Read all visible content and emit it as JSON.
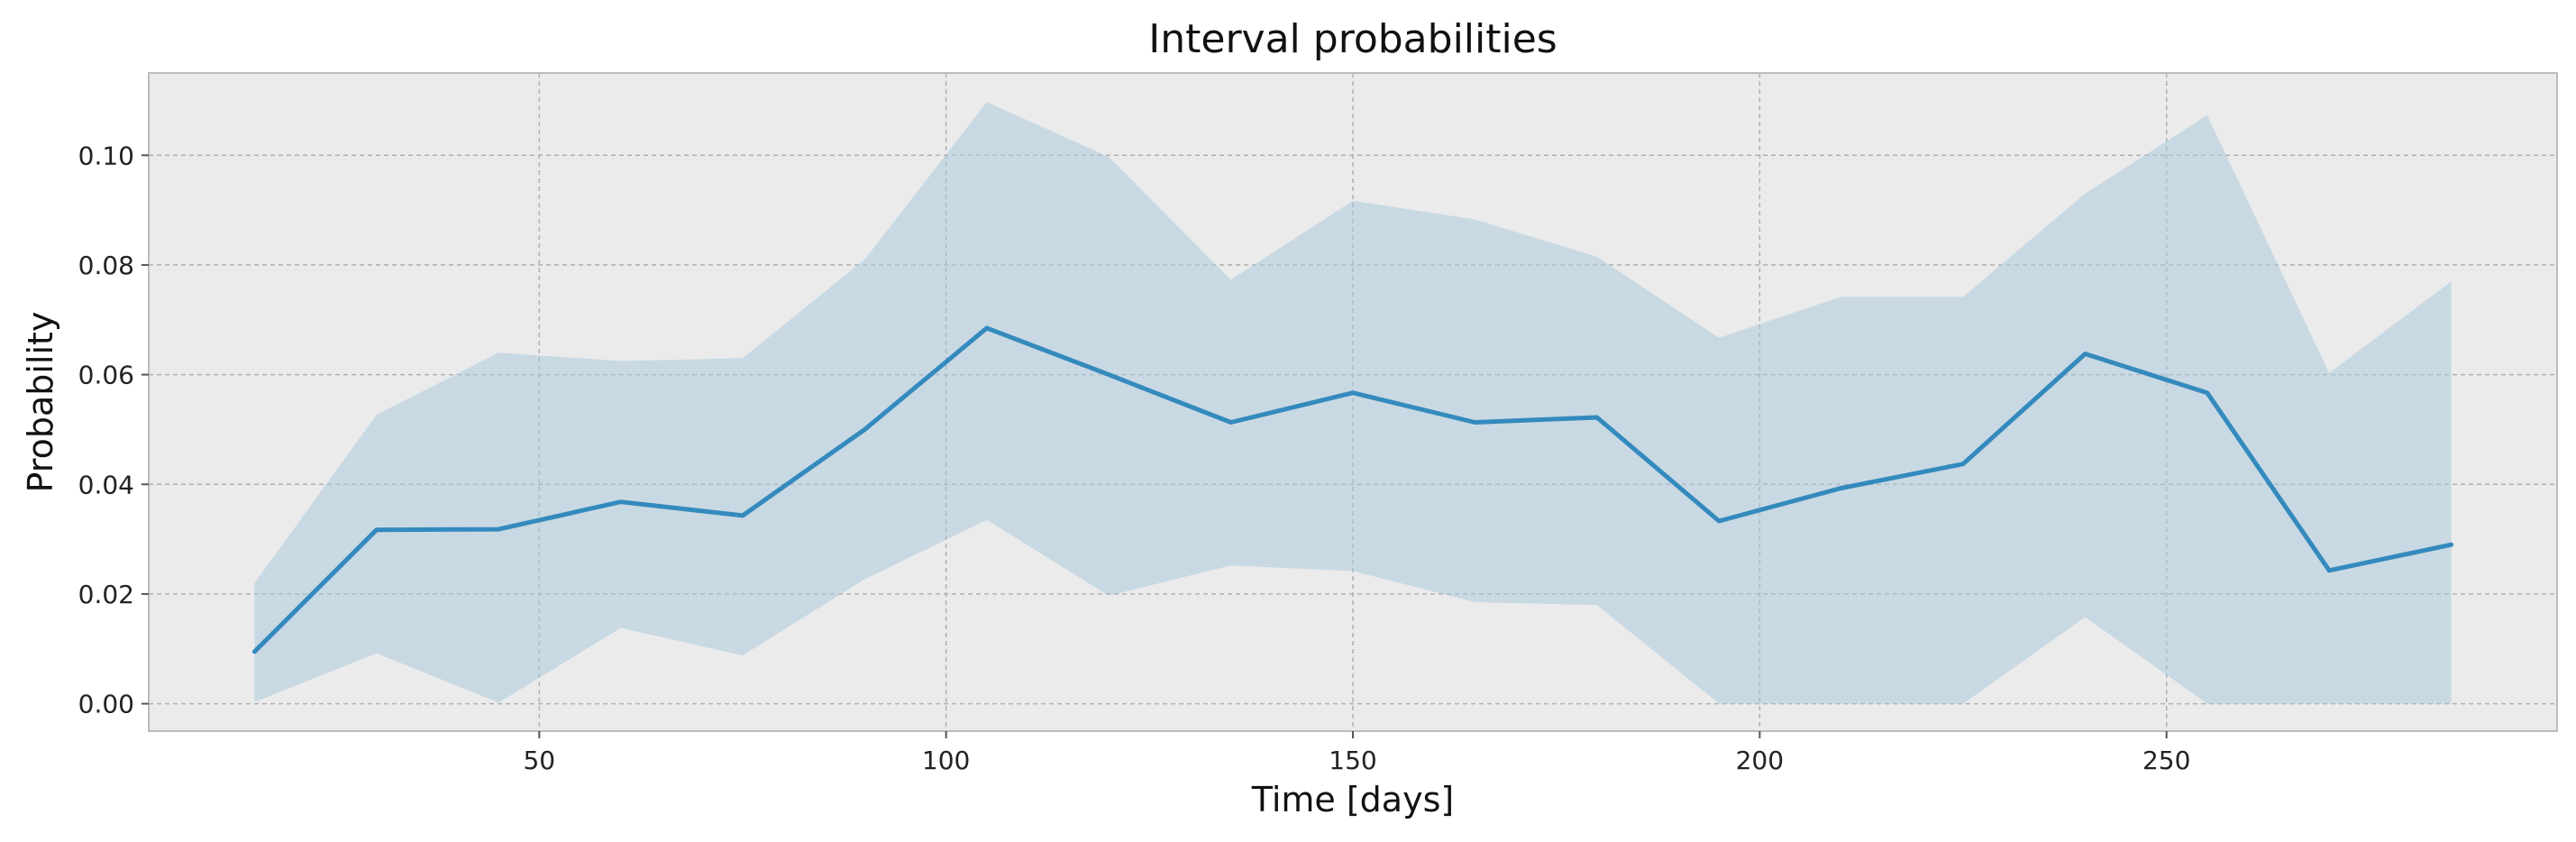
{
  "chart_data": {
    "type": "line",
    "title": "Interval probabilities",
    "xlabel": "Time [days]",
    "ylabel": "Probability",
    "xlim": [
      2,
      298
    ],
    "ylim": [
      -0.005,
      0.115
    ],
    "xticks": [
      50,
      100,
      150,
      200,
      250
    ],
    "yticks": [
      0.0,
      0.02,
      0.04,
      0.06,
      0.08,
      0.1
    ],
    "ytick_labels": [
      "0.00",
      "0.02",
      "0.04",
      "0.06",
      "0.08",
      "0.10"
    ],
    "grid": true,
    "colors": {
      "line": "#348abd",
      "band": "#a6c8dd",
      "background": "#ebebeb",
      "grid": "#b0b0b0",
      "frame": "#bcbcbc"
    },
    "x": [
      15,
      30,
      45,
      60,
      75,
      90,
      105,
      120,
      135,
      150,
      165,
      180,
      195,
      210,
      225,
      240,
      255,
      270,
      285
    ],
    "series": [
      {
        "values": [
          0.0095,
          0.0317,
          0.0318,
          0.0368,
          0.0343,
          0.05,
          0.0685,
          0.06,
          0.0513,
          0.0567,
          0.0513,
          0.0522,
          0.0333,
          0.0393,
          0.0437,
          0.0638,
          0.0567,
          0.0243,
          0.029
        ],
        "lower": [
          0.0003,
          0.0092,
          0.0002,
          0.0138,
          0.0088,
          0.0227,
          0.0335,
          0.0197,
          0.0252,
          0.0242,
          0.0185,
          0.018,
          0.0,
          0.0,
          0.0,
          0.0158,
          0.0,
          0.0,
          0.0
        ],
        "upper": [
          0.022,
          0.0527,
          0.064,
          0.0625,
          0.063,
          0.081,
          0.1097,
          0.0997,
          0.0773,
          0.0917,
          0.0883,
          0.0815,
          0.0667,
          0.0742,
          0.0742,
          0.093,
          0.1073,
          0.0603,
          0.077
        ]
      }
    ]
  }
}
